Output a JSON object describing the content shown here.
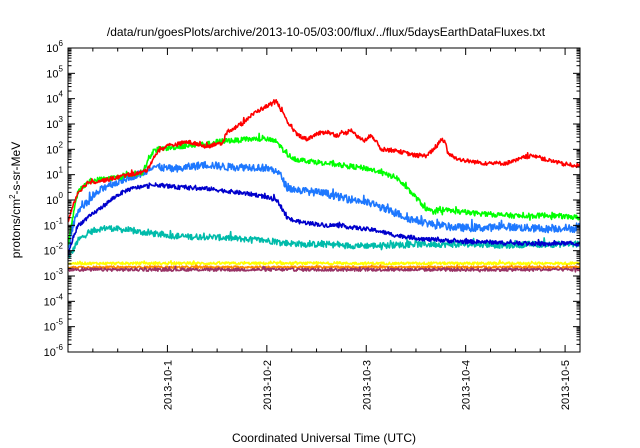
{
  "chart_data": {
    "type": "line",
    "title": "/data/run/goesPlots/archive/2013-10-05/03:00/flux/../flux/5daysEarthDataFluxes.txt",
    "xlabel": "Coordinated Universal Time (UTC)",
    "ylabel_main": "protons/cm",
    "ylabel_sup": "2",
    "ylabel_rest": "-s-sr-MeV",
    "x_tick_labels": [
      "2013-10-1",
      "2013-10-2",
      "2013-10-3",
      "2013-10-4",
      "2013-10-5"
    ],
    "x_tick_values": [
      1,
      2,
      3,
      4,
      5
    ],
    "xlim": [
      0,
      5.15
    ],
    "y_scale": "log",
    "ylim_exp": [
      -6,
      6
    ],
    "y_tick_exponents": [
      -6,
      -5,
      -4,
      -3,
      -2,
      -1,
      0,
      1,
      2,
      3,
      4,
      5,
      6
    ],
    "grid": false,
    "legend": "none",
    "x_unit": "days (day index; tick labels show the date)",
    "series": [
      {
        "color": "#ff0000",
        "noise": 0.08,
        "points": [
          [
            0,
            -0.9
          ],
          [
            0.05,
            -0.2
          ],
          [
            0.1,
            0.3
          ],
          [
            0.2,
            0.7
          ],
          [
            0.3,
            0.75
          ],
          [
            0.4,
            0.8
          ],
          [
            0.5,
            0.9
          ],
          [
            0.6,
            1.0
          ],
          [
            0.7,
            1.05
          ],
          [
            0.75,
            1.1
          ],
          [
            0.8,
            1.2
          ],
          [
            0.85,
            1.6
          ],
          [
            0.9,
            1.9
          ],
          [
            1.0,
            2.15
          ],
          [
            1.1,
            2.2
          ],
          [
            1.2,
            2.3
          ],
          [
            1.3,
            2.2
          ],
          [
            1.4,
            2.1
          ],
          [
            1.5,
            2.25
          ],
          [
            1.55,
            2.15
          ],
          [
            1.6,
            2.7
          ],
          [
            1.7,
            2.9
          ],
          [
            1.75,
            3.0
          ],
          [
            1.8,
            3.2
          ],
          [
            1.9,
            3.5
          ],
          [
            2.0,
            3.7
          ],
          [
            2.1,
            3.9
          ],
          [
            2.15,
            3.5
          ],
          [
            2.2,
            3.1
          ],
          [
            2.3,
            2.6
          ],
          [
            2.4,
            2.4
          ],
          [
            2.5,
            2.6
          ],
          [
            2.6,
            2.7
          ],
          [
            2.7,
            2.55
          ],
          [
            2.8,
            2.65
          ],
          [
            2.85,
            2.8
          ],
          [
            2.9,
            2.5
          ],
          [
            3.0,
            2.35
          ],
          [
            3.05,
            2.6
          ],
          [
            3.1,
            2.3
          ],
          [
            3.15,
            2.0
          ],
          [
            3.3,
            1.95
          ],
          [
            3.4,
            1.85
          ],
          [
            3.5,
            1.75
          ],
          [
            3.6,
            1.75
          ],
          [
            3.7,
            2.05
          ],
          [
            3.75,
            2.4
          ],
          [
            3.8,
            2.25
          ],
          [
            3.82,
            1.85
          ],
          [
            3.9,
            1.65
          ],
          [
            4.0,
            1.55
          ],
          [
            4.2,
            1.45
          ],
          [
            4.4,
            1.45
          ],
          [
            4.5,
            1.55
          ],
          [
            4.6,
            1.7
          ],
          [
            4.7,
            1.75
          ],
          [
            4.8,
            1.6
          ],
          [
            4.9,
            1.5
          ],
          [
            5.0,
            1.4
          ],
          [
            5.15,
            1.35
          ]
        ]
      },
      {
        "color": "#00ff00",
        "noise": 0.1,
        "points": [
          [
            0,
            -1.8
          ],
          [
            0.05,
            -0.6
          ],
          [
            0.1,
            0.3
          ],
          [
            0.2,
            0.7
          ],
          [
            0.3,
            0.8
          ],
          [
            0.4,
            0.85
          ],
          [
            0.5,
            0.9
          ],
          [
            0.6,
            0.95
          ],
          [
            0.7,
            1.05
          ],
          [
            0.75,
            1.1
          ],
          [
            0.8,
            1.5
          ],
          [
            0.85,
            1.9
          ],
          [
            0.9,
            2.0
          ],
          [
            1.0,
            2.05
          ],
          [
            1.1,
            2.1
          ],
          [
            1.2,
            2.15
          ],
          [
            1.3,
            2.2
          ],
          [
            1.4,
            2.2
          ],
          [
            1.5,
            2.3
          ],
          [
            1.6,
            2.35
          ],
          [
            1.7,
            2.35
          ],
          [
            1.8,
            2.4
          ],
          [
            1.9,
            2.4
          ],
          [
            2.0,
            2.4
          ],
          [
            2.1,
            2.3
          ],
          [
            2.2,
            1.8
          ],
          [
            2.3,
            1.6
          ],
          [
            2.4,
            1.55
          ],
          [
            2.5,
            1.5
          ],
          [
            2.6,
            1.45
          ],
          [
            2.7,
            1.4
          ],
          [
            2.8,
            1.35
          ],
          [
            2.9,
            1.3
          ],
          [
            3.0,
            1.25
          ],
          [
            3.1,
            1.15
          ],
          [
            3.2,
            1.0
          ],
          [
            3.3,
            0.9
          ],
          [
            3.4,
            0.5
          ],
          [
            3.5,
            0.1
          ],
          [
            3.6,
            -0.35
          ],
          [
            3.7,
            -0.5
          ],
          [
            3.8,
            -0.4
          ],
          [
            3.9,
            -0.45
          ],
          [
            4.0,
            -0.5
          ],
          [
            4.2,
            -0.55
          ],
          [
            4.4,
            -0.6
          ],
          [
            4.6,
            -0.65
          ],
          [
            4.8,
            -0.6
          ],
          [
            5.0,
            -0.65
          ],
          [
            5.15,
            -0.7
          ]
        ]
      },
      {
        "color": "#1e78ff",
        "noise": 0.15,
        "points": [
          [
            0,
            -2.0
          ],
          [
            0.05,
            -1.0
          ],
          [
            0.1,
            -0.4
          ],
          [
            0.2,
            -0.1
          ],
          [
            0.3,
            0.3
          ],
          [
            0.4,
            0.6
          ],
          [
            0.5,
            0.7
          ],
          [
            0.6,
            0.9
          ],
          [
            0.7,
            1.0
          ],
          [
            0.75,
            1.05
          ],
          [
            0.8,
            1.2
          ],
          [
            0.85,
            1.35
          ],
          [
            0.9,
            1.3
          ],
          [
            1.0,
            1.25
          ],
          [
            1.1,
            1.2
          ],
          [
            1.2,
            1.3
          ],
          [
            1.3,
            1.35
          ],
          [
            1.4,
            1.4
          ],
          [
            1.5,
            1.35
          ],
          [
            1.6,
            1.3
          ],
          [
            1.7,
            1.3
          ],
          [
            1.8,
            1.3
          ],
          [
            1.9,
            1.3
          ],
          [
            2.0,
            1.25
          ],
          [
            2.1,
            1.15
          ],
          [
            2.15,
            0.9
          ],
          [
            2.2,
            0.5
          ],
          [
            2.3,
            0.4
          ],
          [
            2.4,
            0.35
          ],
          [
            2.5,
            0.3
          ],
          [
            2.6,
            0.25
          ],
          [
            2.7,
            0.15
          ],
          [
            2.8,
            0.05
          ],
          [
            2.9,
            0.0
          ],
          [
            3.0,
            -0.1
          ],
          [
            3.1,
            -0.2
          ],
          [
            3.2,
            -0.4
          ],
          [
            3.3,
            -0.5
          ],
          [
            3.4,
            -0.7
          ],
          [
            3.5,
            -0.8
          ],
          [
            3.6,
            -0.9
          ],
          [
            3.7,
            -1.0
          ],
          [
            3.8,
            -1.05
          ],
          [
            4.0,
            -1.1
          ],
          [
            4.2,
            -1.1
          ],
          [
            4.4,
            -1.05
          ],
          [
            4.6,
            -1.1
          ],
          [
            4.8,
            -1.15
          ],
          [
            5.0,
            -1.1
          ],
          [
            5.15,
            -1.15
          ]
        ]
      },
      {
        "color": "#0000cc",
        "noise": 0.08,
        "points": [
          [
            0,
            -2.2
          ],
          [
            0.05,
            -1.5
          ],
          [
            0.1,
            -1.0
          ],
          [
            0.2,
            -0.7
          ],
          [
            0.3,
            -0.4
          ],
          [
            0.4,
            -0.1
          ],
          [
            0.5,
            0.2
          ],
          [
            0.6,
            0.4
          ],
          [
            0.7,
            0.5
          ],
          [
            0.8,
            0.55
          ],
          [
            0.9,
            0.6
          ],
          [
            1.0,
            0.55
          ],
          [
            1.1,
            0.5
          ],
          [
            1.2,
            0.5
          ],
          [
            1.3,
            0.45
          ],
          [
            1.4,
            0.45
          ],
          [
            1.5,
            0.4
          ],
          [
            1.6,
            0.35
          ],
          [
            1.7,
            0.3
          ],
          [
            1.8,
            0.25
          ],
          [
            1.9,
            0.2
          ],
          [
            2.0,
            0.1
          ],
          [
            2.1,
            0.0
          ],
          [
            2.15,
            -0.3
          ],
          [
            2.2,
            -0.7
          ],
          [
            2.3,
            -0.85
          ],
          [
            2.4,
            -0.9
          ],
          [
            2.5,
            -0.95
          ],
          [
            2.6,
            -1.0
          ],
          [
            2.7,
            -1.0
          ],
          [
            2.8,
            -1.05
          ],
          [
            2.9,
            -1.1
          ],
          [
            3.0,
            -1.15
          ],
          [
            3.1,
            -1.2
          ],
          [
            3.2,
            -1.3
          ],
          [
            3.3,
            -1.4
          ],
          [
            3.4,
            -1.45
          ],
          [
            3.5,
            -1.5
          ],
          [
            3.6,
            -1.55
          ],
          [
            3.8,
            -1.6
          ],
          [
            4.0,
            -1.65
          ],
          [
            4.2,
            -1.65
          ],
          [
            4.4,
            -1.7
          ],
          [
            4.6,
            -1.7
          ],
          [
            4.8,
            -1.75
          ],
          [
            5.0,
            -1.7
          ],
          [
            5.15,
            -1.75
          ]
        ]
      },
      {
        "color": "#00bbaa",
        "noise": 0.12,
        "points": [
          [
            0,
            -2.3
          ],
          [
            0.05,
            -2.0
          ],
          [
            0.1,
            -1.6
          ],
          [
            0.2,
            -1.3
          ],
          [
            0.3,
            -1.15
          ],
          [
            0.4,
            -1.1
          ],
          [
            0.5,
            -1.15
          ],
          [
            0.6,
            -1.2
          ],
          [
            0.7,
            -1.25
          ],
          [
            0.8,
            -1.3
          ],
          [
            0.9,
            -1.35
          ],
          [
            1.0,
            -1.4
          ],
          [
            1.2,
            -1.45
          ],
          [
            1.4,
            -1.45
          ],
          [
            1.6,
            -1.5
          ],
          [
            1.8,
            -1.55
          ],
          [
            2.0,
            -1.6
          ],
          [
            2.2,
            -1.7
          ],
          [
            2.4,
            -1.75
          ],
          [
            2.6,
            -1.75
          ],
          [
            2.8,
            -1.8
          ],
          [
            3.0,
            -1.8
          ],
          [
            3.2,
            -1.8
          ],
          [
            3.4,
            -1.75
          ],
          [
            3.6,
            -1.75
          ],
          [
            3.8,
            -1.75
          ],
          [
            4.0,
            -1.75
          ],
          [
            4.2,
            -1.75
          ],
          [
            4.4,
            -1.8
          ],
          [
            4.6,
            -1.75
          ],
          [
            4.8,
            -1.75
          ],
          [
            5.0,
            -1.75
          ],
          [
            5.15,
            -1.75
          ]
        ]
      },
      {
        "color": "#ffff00",
        "noise": 0.05,
        "points": [
          [
            0,
            -2.5
          ],
          [
            0.5,
            -2.5
          ],
          [
            1.0,
            -2.5
          ],
          [
            1.5,
            -2.5
          ],
          [
            2.0,
            -2.5
          ],
          [
            2.5,
            -2.5
          ],
          [
            3.0,
            -2.5
          ],
          [
            3.5,
            -2.5
          ],
          [
            4.0,
            -2.5
          ],
          [
            4.5,
            -2.5
          ],
          [
            5.0,
            -2.5
          ],
          [
            5.15,
            -2.5
          ]
        ]
      },
      {
        "color": "#ff8800",
        "noise": 0.04,
        "points": [
          [
            0,
            -2.65
          ],
          [
            0.5,
            -2.65
          ],
          [
            1.0,
            -2.65
          ],
          [
            1.5,
            -2.65
          ],
          [
            2.0,
            -2.65
          ],
          [
            2.5,
            -2.65
          ],
          [
            3.0,
            -2.65
          ],
          [
            3.5,
            -2.65
          ],
          [
            4.0,
            -2.65
          ],
          [
            4.5,
            -2.65
          ],
          [
            5.0,
            -2.65
          ],
          [
            5.15,
            -2.65
          ]
        ]
      },
      {
        "color": "#993366",
        "noise": 0.06,
        "points": [
          [
            0,
            -2.75
          ],
          [
            0.5,
            -2.75
          ],
          [
            1.0,
            -2.75
          ],
          [
            1.5,
            -2.75
          ],
          [
            2.0,
            -2.75
          ],
          [
            2.5,
            -2.75
          ],
          [
            3.0,
            -2.75
          ],
          [
            3.5,
            -2.75
          ],
          [
            4.0,
            -2.75
          ],
          [
            4.5,
            -2.75
          ],
          [
            5.0,
            -2.75
          ],
          [
            5.15,
            -2.75
          ]
        ]
      }
    ]
  }
}
